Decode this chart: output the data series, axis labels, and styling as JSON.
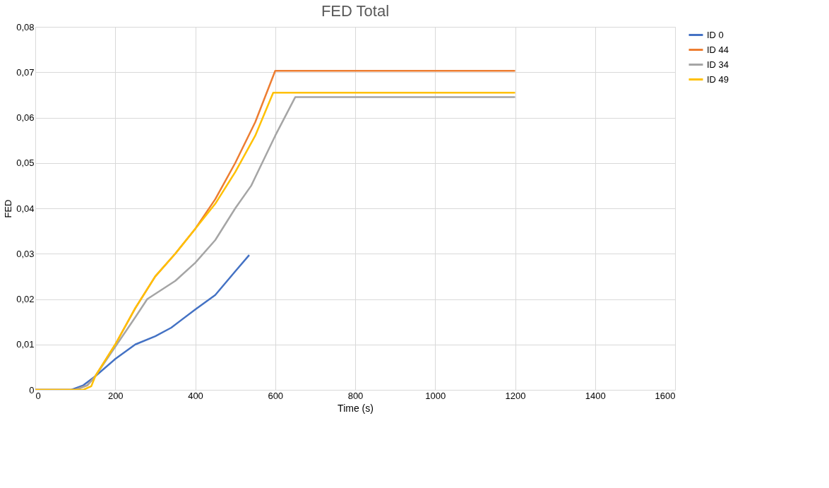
{
  "chart_data": {
    "type": "line",
    "title": "FED Total",
    "xlabel": "Time (s)",
    "ylabel": "FED",
    "xlim": [
      0,
      1600
    ],
    "xticks": [
      0,
      200,
      400,
      600,
      800,
      1000,
      1200,
      1400,
      1600
    ],
    "ylim": [
      0,
      0.08
    ],
    "yticks": [
      0,
      {
        "value": 0.01,
        "label": "0,01"
      },
      {
        "value": 0.02,
        "label": "0,02"
      },
      {
        "value": 0.03,
        "label": "0,03"
      },
      {
        "value": 0.04,
        "label": "0,04"
      },
      {
        "value": 0.05,
        "label": "0,05"
      },
      {
        "value": 0.06,
        "label": "0,06"
      },
      {
        "value": 0.07,
        "label": "0,07"
      },
      {
        "value": 0.08,
        "label": "0,08"
      }
    ],
    "grid": true,
    "legend": "right",
    "marker": "none",
    "line_style": "solid",
    "series": [
      {
        "name": "ID 0",
        "color": "#4472c4",
        "x": [
          0,
          90,
          120,
          150,
          200,
          250,
          300,
          340,
          400,
          450,
          500,
          535
        ],
        "values": [
          0,
          0,
          0.001,
          0.003,
          0.0068,
          0.01,
          0.0118,
          0.0137,
          0.0177,
          0.0209,
          0.0261,
          0.0297
        ]
      },
      {
        "name": "ID 44",
        "color": "#ed7d31",
        "x": [
          0,
          100,
          130,
          150,
          200,
          250,
          300,
          350,
          400,
          450,
          500,
          550,
          600,
          1200
        ],
        "values": [
          0,
          0,
          0.001,
          0.003,
          0.01,
          0.018,
          0.025,
          0.03,
          0.0355,
          0.042,
          0.05,
          0.059,
          0.0703,
          0.0703
        ]
      },
      {
        "name": "ID 34",
        "color": "#a5a5a5",
        "x": [
          0,
          100,
          130,
          150,
          200,
          250,
          280,
          350,
          400,
          450,
          500,
          540,
          600,
          650,
          1200
        ],
        "values": [
          0,
          0,
          0.001,
          0.003,
          0.0095,
          0.016,
          0.02,
          0.024,
          0.028,
          0.033,
          0.04,
          0.045,
          0.056,
          0.0645,
          0.0645
        ]
      },
      {
        "name": "ID 49",
        "color": "#ffc000",
        "x": [
          0,
          120,
          140,
          150,
          200,
          250,
          300,
          350,
          400,
          450,
          500,
          550,
          595,
          1200
        ],
        "values": [
          0,
          0,
          0.0008,
          0.003,
          0.01,
          0.018,
          0.025,
          0.03,
          0.0355,
          0.041,
          0.048,
          0.056,
          0.0655,
          0.0655
        ]
      }
    ]
  }
}
